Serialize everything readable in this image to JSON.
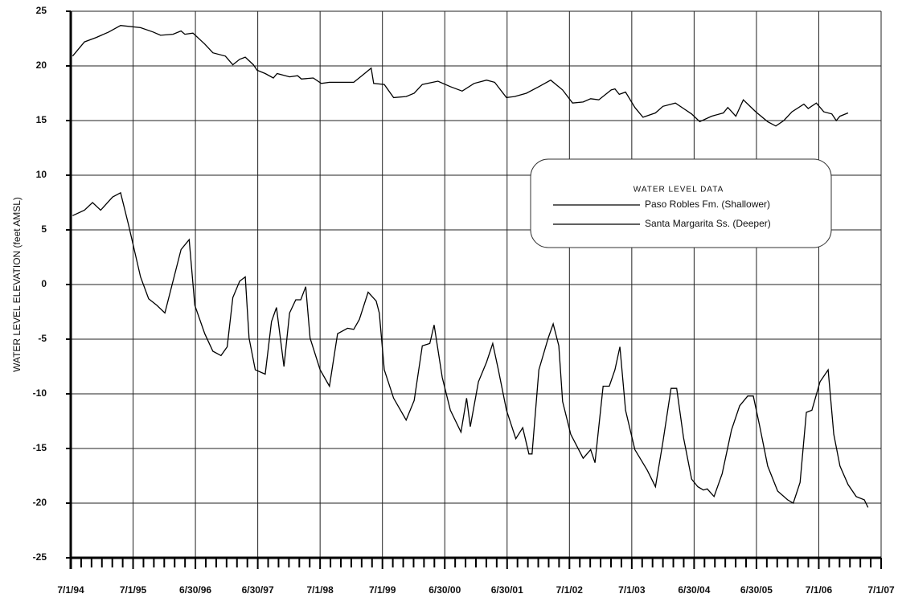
{
  "chart_data": {
    "type": "line",
    "y_label": "WATER LEVEL ELEVATION (feet AMSL)",
    "legend_title": "WATER LEVEL DATA",
    "legend": "center right",
    "grid": true,
    "xlim": [
      1994.5,
      2007.5
    ],
    "xticks": [
      {
        "value": 1994.5,
        "label": "7/1/94"
      },
      {
        "value": 1995.5,
        "label": "7/1/95"
      },
      {
        "value": 1996.5,
        "label": "6/30/96"
      },
      {
        "value": 1997.5,
        "label": "6/30/97"
      },
      {
        "value": 1998.5,
        "label": "7/1/98"
      },
      {
        "value": 1999.5,
        "label": "7/1/99"
      },
      {
        "value": 2000.5,
        "label": "6/30/00"
      },
      {
        "value": 2001.5,
        "label": "6/30/01"
      },
      {
        "value": 2002.5,
        "label": "7/1/02"
      },
      {
        "value": 2003.5,
        "label": "7/1/03"
      },
      {
        "value": 2004.5,
        "label": "6/30/04"
      },
      {
        "value": 2005.5,
        "label": "6/30/05"
      },
      {
        "value": 2006.5,
        "label": "7/1/06"
      },
      {
        "value": 2007.5,
        "label": "7/1/07"
      }
    ],
    "ylim": [
      -25,
      25
    ],
    "yticks": [
      -25,
      -20,
      -15,
      -10,
      -5,
      0,
      5,
      10,
      15,
      20,
      25
    ],
    "series": [
      {
        "name": "Paso Robles Fm. (Shallower)",
        "color": "#000000",
        "x": [
          1994.53,
          1994.72,
          1994.91,
          1995.11,
          1995.3,
          1995.62,
          1995.82,
          1995.94,
          1996.14,
          1996.27,
          1996.33,
          1996.46,
          1996.65,
          1996.78,
          1996.98,
          1997.1,
          1997.21,
          1997.3,
          1997.43,
          1997.49,
          1997.62,
          1997.75,
          1997.81,
          1998.01,
          1998.14,
          1998.2,
          1998.39,
          1998.52,
          1998.65,
          1998.85,
          1999.04,
          1999.17,
          1999.32,
          1999.36,
          1999.53,
          1999.68,
          1999.88,
          2000.01,
          2000.14,
          2000.39,
          2000.59,
          2000.78,
          2000.97,
          2001.17,
          2001.3,
          2001.49,
          2001.62,
          2001.81,
          2002.01,
          2002.2,
          2002.39,
          2002.55,
          2002.72,
          2002.84,
          2002.97,
          2003.17,
          2003.23,
          2003.3,
          2003.4,
          2003.55,
          2003.68,
          2003.88,
          2004.0,
          2004.2,
          2004.33,
          2004.46,
          2004.59,
          2004.78,
          2004.97,
          2005.04,
          2005.17,
          2005.29,
          2005.49,
          2005.68,
          2005.81,
          2005.94,
          2006.07,
          2006.26,
          2006.33,
          2006.46,
          2006.58,
          2006.71,
          2006.78,
          2006.84,
          2006.97
        ],
        "values": [
          20.9,
          22.2,
          22.6,
          23.1,
          23.7,
          23.5,
          23.1,
          22.8,
          22.9,
          23.2,
          22.9,
          23.0,
          22.0,
          21.2,
          20.9,
          20.1,
          20.6,
          20.8,
          20.1,
          19.6,
          19.3,
          18.9,
          19.3,
          19.0,
          19.1,
          18.8,
          18.9,
          18.4,
          18.5,
          18.5,
          18.5,
          19.1,
          19.8,
          18.4,
          18.3,
          17.1,
          17.2,
          17.5,
          18.3,
          18.6,
          18.1,
          17.7,
          18.4,
          18.7,
          18.5,
          17.1,
          17.2,
          17.5,
          18.1,
          18.7,
          17.8,
          16.6,
          16.7,
          17.0,
          16.9,
          17.8,
          17.9,
          17.4,
          17.6,
          16.2,
          15.3,
          15.7,
          16.3,
          16.6,
          16.1,
          15.6,
          14.9,
          15.4,
          15.7,
          16.2,
          15.4,
          16.9,
          15.8,
          14.9,
          14.5,
          15.0,
          15.8,
          16.5,
          16.1,
          16.6,
          15.8,
          15.6,
          15.0,
          15.4,
          15.7
        ]
      },
      {
        "name": "Santa Margarita Ss. (Deeper)",
        "color": "#000000",
        "x": [
          1994.53,
          1994.72,
          1994.85,
          1994.98,
          1995.17,
          1995.3,
          1995.43,
          1995.62,
          1995.75,
          1995.88,
          1996.01,
          1996.27,
          1996.4,
          1996.49,
          1996.65,
          1996.78,
          1996.91,
          1997.01,
          1997.1,
          1997.21,
          1997.3,
          1997.36,
          1997.46,
          1997.62,
          1997.72,
          1997.8,
          1997.92,
          1998.01,
          1998.11,
          1998.19,
          1998.27,
          1998.34,
          1998.5,
          1998.65,
          1998.78,
          1998.94,
          1999.04,
          1999.13,
          1999.27,
          1999.4,
          1999.45,
          1999.53,
          1999.68,
          1999.88,
          2000.01,
          2000.14,
          2000.26,
          2000.33,
          2000.46,
          2000.59,
          2000.76,
          2000.85,
          2000.91,
          2001.04,
          2001.17,
          2001.27,
          2001.36,
          2001.49,
          2001.64,
          2001.75,
          2001.85,
          2001.9,
          2002.01,
          2002.16,
          2002.24,
          2002.33,
          2002.39,
          2002.52,
          2002.72,
          2002.84,
          2002.91,
          2003.04,
          2003.14,
          2003.23,
          2003.31,
          2003.4,
          2003.55,
          2003.75,
          2003.88,
          2004.0,
          2004.13,
          2004.22,
          2004.33,
          2004.46,
          2004.56,
          2004.65,
          2004.71,
          2004.82,
          2004.95,
          2005.1,
          2005.23,
          2005.36,
          2005.45,
          2005.55,
          2005.68,
          2005.84,
          2006.0,
          2006.09,
          2006.2,
          2006.3,
          2006.39,
          2006.52,
          2006.65,
          2006.74,
          2006.84,
          2006.97,
          2007.1,
          2007.23,
          2007.29
        ],
        "values": [
          6.3,
          6.8,
          7.5,
          6.8,
          8.0,
          8.4,
          5.4,
          0.7,
          -1.3,
          -1.9,
          -2.6,
          3.2,
          4.1,
          -1.9,
          -4.5,
          -6.1,
          -6.5,
          -5.7,
          -1.2,
          0.3,
          0.7,
          -4.9,
          -7.8,
          -8.2,
          -3.4,
          -2.1,
          -7.5,
          -2.6,
          -1.4,
          -1.4,
          -0.2,
          -4.9,
          -7.8,
          -9.3,
          -4.5,
          -4.0,
          -4.1,
          -3.2,
          -0.7,
          -1.5,
          -2.6,
          -7.8,
          -10.4,
          -12.4,
          -10.6,
          -5.6,
          -5.4,
          -3.7,
          -8.5,
          -11.5,
          -13.5,
          -10.4,
          -13.0,
          -8.9,
          -7.1,
          -5.4,
          -7.8,
          -11.5,
          -14.1,
          -13.1,
          -15.5,
          -15.5,
          -7.8,
          -4.9,
          -3.6,
          -5.6,
          -10.7,
          -13.7,
          -15.9,
          -15.1,
          -16.3,
          -9.3,
          -9.3,
          -7.8,
          -5.7,
          -11.5,
          -15.1,
          -17.0,
          -18.5,
          -14.4,
          -9.5,
          -9.5,
          -14.0,
          -17.8,
          -18.5,
          -18.8,
          -18.7,
          -19.4,
          -17.3,
          -13.3,
          -11.1,
          -10.2,
          -10.2,
          -12.9,
          -16.6,
          -18.9,
          -19.7,
          -20.0,
          -18.1,
          -11.7,
          -11.5,
          -8.9,
          -7.8,
          -13.7,
          -16.6,
          -18.3,
          -19.4,
          -19.7,
          -20.4
        ]
      }
    ]
  }
}
